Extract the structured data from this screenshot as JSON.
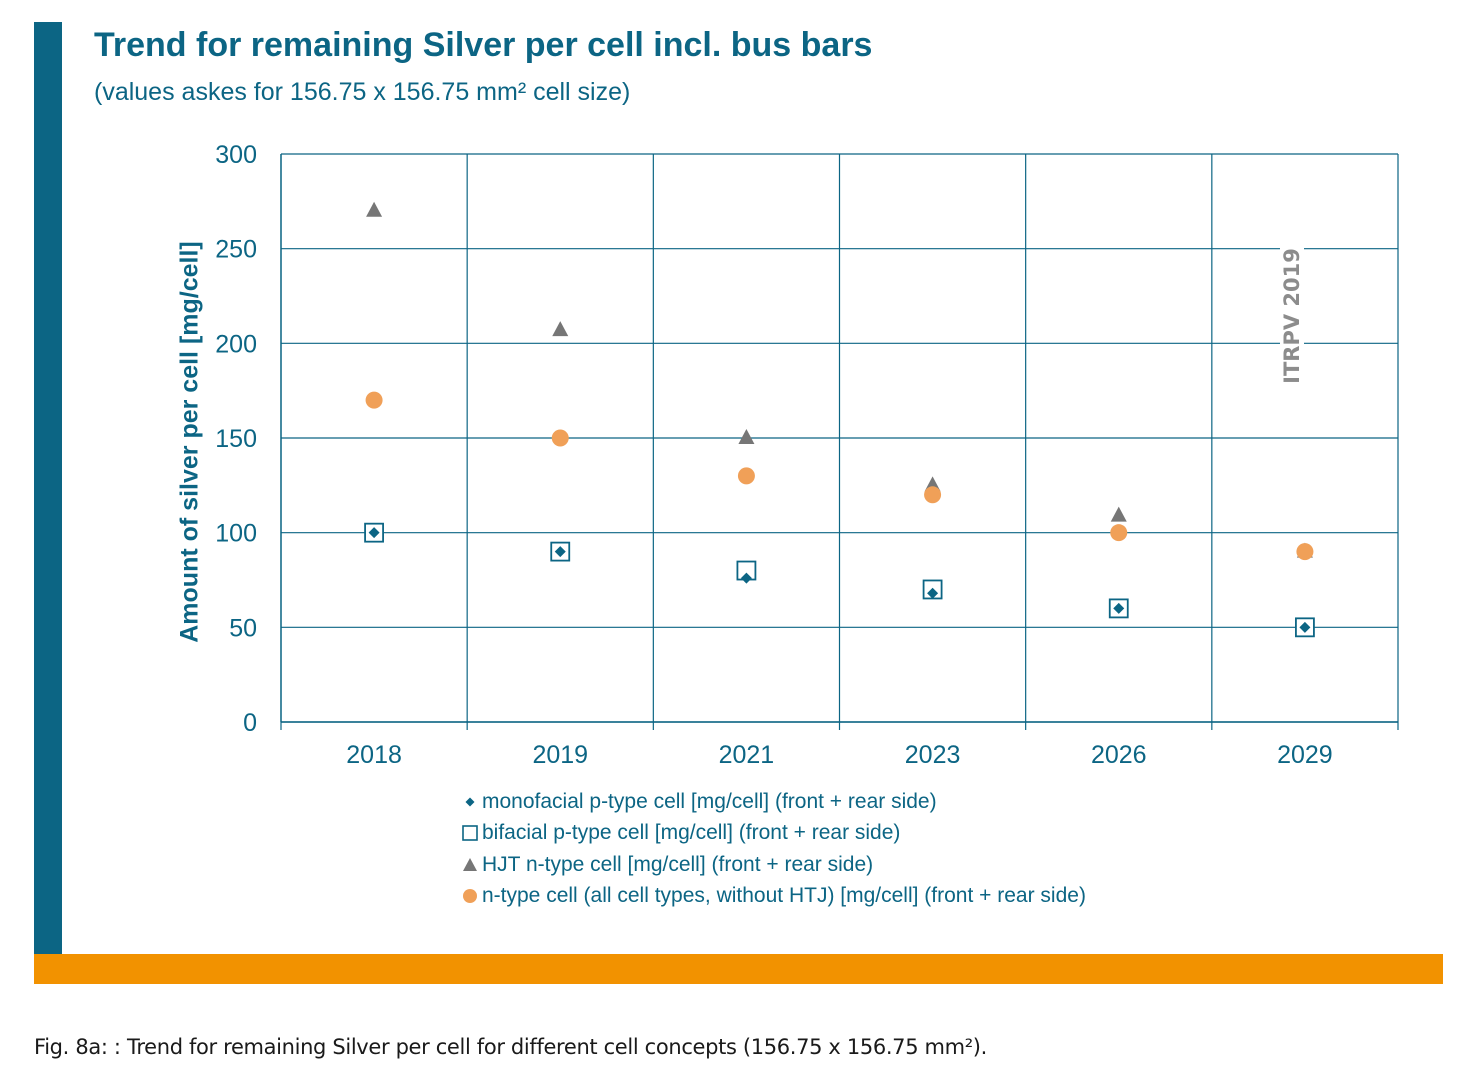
{
  "title": "Trend for remaining Silver per cell incl. bus bars",
  "subtitle": "(values askes for 156.75 x 156.75 mm² cell size)",
  "watermark": "ITRPV 2019",
  "caption": "Fig. 8a: : Trend for remaining Silver per cell for different cell concepts (156.75 x 156.75 mm²).",
  "colors": {
    "accent_blue": "#0c6584",
    "accent_orange": "#f29200",
    "series_gray": "#767676",
    "series_orange": "#f0a058"
  },
  "chart_data": {
    "type": "scatter",
    "title": "Trend for remaining Silver per cell incl. bus bars",
    "subtitle": "(values askes for 156.75 x 156.75 mm² cell size)",
    "ylabel": "Amount of silver per cell [mg/cell]",
    "xlabel": "",
    "categories": [
      "2018",
      "2019",
      "2021",
      "2023",
      "2026",
      "2029"
    ],
    "ylim": [
      0,
      300
    ],
    "yticks": [
      0,
      50,
      100,
      150,
      200,
      250,
      300
    ],
    "grid": true,
    "legend_position": "bottom",
    "series": [
      {
        "name": "monofacial p-type cell [mg/cell] (front + rear side)",
        "marker": "diamond",
        "color": "#0c6584",
        "values": [
          100,
          90,
          76,
          68,
          60,
          50
        ]
      },
      {
        "name": "bifacial p-type cell [mg/cell] (front + rear side)",
        "marker": "square",
        "color": "#0c6584",
        "values": [
          100,
          90,
          80,
          70,
          60,
          50
        ]
      },
      {
        "name": "HJT n-type cell [mg/cell] (front + rear side)",
        "marker": "triangle",
        "color": "#767676",
        "values": [
          270,
          207,
          150,
          125,
          109,
          90
        ]
      },
      {
        "name": "n-type cell (all cell types, without HTJ) [mg/cell] (front + rear side)",
        "marker": "circle",
        "color": "#f0a058",
        "values": [
          170,
          150,
          130,
          120,
          100,
          90
        ]
      }
    ]
  }
}
